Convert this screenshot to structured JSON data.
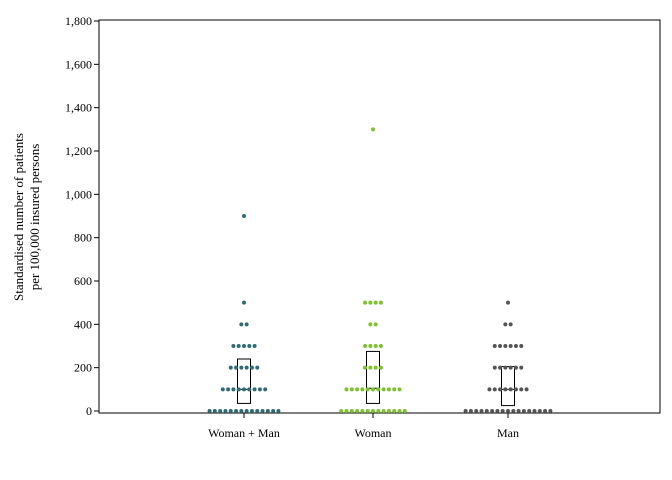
{
  "chart_data": {
    "type": "scatter",
    "subtype": "dot-strip-with-box",
    "title": "",
    "ylabel_lines": [
      "Standardised number of patients",
      "per 100,000 insured persons"
    ],
    "xlabel": "",
    "ylim": [
      0,
      1800
    ],
    "yticks": [
      0,
      200,
      400,
      600,
      800,
      1000,
      1200,
      1400,
      1600,
      1800
    ],
    "ytick_labels": [
      "0",
      "200",
      "400",
      "600",
      "800",
      "1,000",
      "1,200",
      "1,400",
      "1,600",
      "1,800"
    ],
    "grid": false,
    "legend": "none",
    "categories": [
      "Woman + Man",
      "Woman",
      "Man"
    ],
    "series": [
      {
        "name": "Woman + Man",
        "color": "#2e6b73",
        "points": [
          {
            "value": 0,
            "count": 14
          },
          {
            "value": 100,
            "count": 9
          },
          {
            "value": 200,
            "count": 6
          },
          {
            "value": 300,
            "count": 5
          },
          {
            "value": 400,
            "count": 2
          },
          {
            "value": 500,
            "count": 1
          },
          {
            "value": 900,
            "count": 1
          }
        ],
        "box": {
          "q1": 35,
          "median": 100,
          "q3": 240
        }
      },
      {
        "name": "Woman",
        "color": "#7cc22a",
        "points": [
          {
            "value": 0,
            "count": 13
          },
          {
            "value": 100,
            "count": 11
          },
          {
            "value": 200,
            "count": 4
          },
          {
            "value": 300,
            "count": 4
          },
          {
            "value": 400,
            "count": 2
          },
          {
            "value": 500,
            "count": 4
          },
          {
            "value": 1300,
            "count": 1
          }
        ],
        "box": {
          "q1": 35,
          "median": 105,
          "q3": 275
        }
      },
      {
        "name": "Man",
        "color": "#555555",
        "points": [
          {
            "value": 0,
            "count": 17
          },
          {
            "value": 100,
            "count": 8
          },
          {
            "value": 200,
            "count": 6
          },
          {
            "value": 300,
            "count": 6
          },
          {
            "value": 400,
            "count": 2
          },
          {
            "value": 500,
            "count": 1
          }
        ],
        "box": {
          "q1": 25,
          "median": 100,
          "q3": 205
        }
      }
    ]
  }
}
